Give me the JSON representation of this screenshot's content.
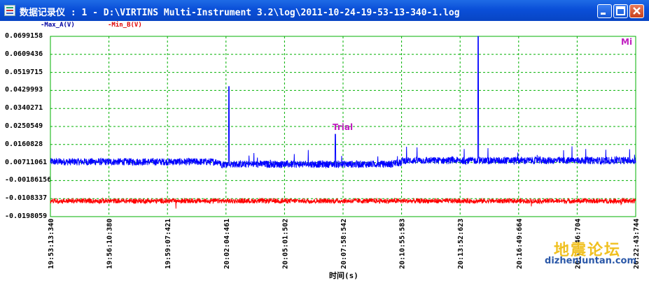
{
  "window": {
    "title": "数据记录仪 : 1 - D:\\VIRTINS Multi-Instrument 3.2\\log\\2011-10-24-19-53-13-340-1.log"
  },
  "legend": {
    "series_a": "-Max_A(V)",
    "series_b": "-Min_B(V)"
  },
  "corner_label": "Mi",
  "annotation": "Trial",
  "watermark": {
    "cn": "地震论坛",
    "url": "dizhenluntan.com"
  },
  "colors": {
    "series_a": "#0000ff",
    "series_b": "#ff0000",
    "grid": "#00b000",
    "title_bar": "#0a4fd8"
  },
  "chart_data": {
    "type": "line",
    "xlabel": "时间(s)",
    "ylabel": "",
    "y_ticks": [
      "0.0699158",
      "0.0609436",
      "0.0519715",
      "0.0429993",
      "0.0340271",
      "0.0250549",
      "0.0160828",
      "0.00711061",
      "-0.00186156",
      "-0.0108337",
      "-0.0198059"
    ],
    "ylim": [
      -0.0198059,
      0.0699158
    ],
    "x_ticks": [
      "19:53:13:340",
      "19:56:10:380",
      "19:59:07:421",
      "20:02:04:461",
      "20:05:01:502",
      "20:07:58:542",
      "20:10:55:583",
      "20:13:52:623",
      "20:16:49:664",
      "20:19:46:704",
      "20:22:43:744"
    ],
    "grid": true,
    "series": [
      {
        "name": "-Max_A(V)",
        "baseline": 0.0075,
        "noise": 0.0018,
        "spikes": [
          {
            "x_frac": 0.305,
            "y": 0.0449
          },
          {
            "x_frac": 0.487,
            "y": 0.0212
          },
          {
            "x_frac": 0.731,
            "y": 0.0699
          }
        ]
      },
      {
        "name": "-Min_B(V)",
        "baseline": -0.012,
        "noise": 0.0012,
        "spikes": []
      }
    ]
  }
}
